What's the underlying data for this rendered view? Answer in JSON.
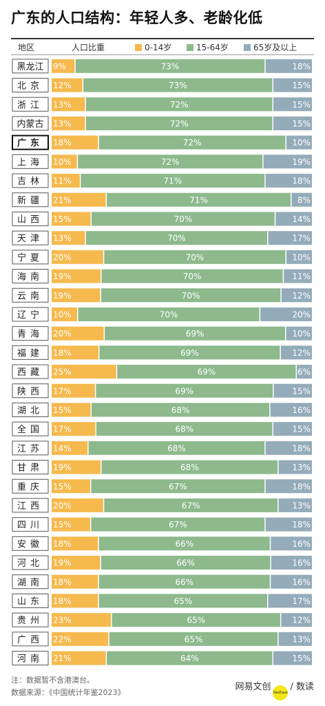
{
  "title": "广东的人口结构：年轻人多、老龄化低",
  "header": {
    "region_label": "地区",
    "ratio_label": "人口比重"
  },
  "colors": {
    "young": "#f5b94e",
    "working": "#8db98c",
    "old": "#94abb9"
  },
  "chart_data": {
    "type": "bar",
    "orientation": "horizontal",
    "stacked": true,
    "unit": "%",
    "highlight": "广东",
    "categories": [
      "黑龙江",
      "北京",
      "浙江",
      "内蒙古",
      "广东",
      "上海",
      "吉林",
      "新疆",
      "山西",
      "天津",
      "宁夏",
      "海南",
      "云南",
      "辽宁",
      "青海",
      "福建",
      "西藏",
      "陕西",
      "湖北",
      "全国",
      "江苏",
      "甘肃",
      "重庆",
      "江西",
      "四川",
      "安徽",
      "河北",
      "湖南",
      "山东",
      "贵州",
      "广西",
      "河南"
    ],
    "series": [
      {
        "name": "0-14岁",
        "values": [
          9,
          12,
          13,
          13,
          18,
          10,
          11,
          21,
          15,
          13,
          20,
          19,
          19,
          10,
          20,
          18,
          25,
          17,
          15,
          17,
          14,
          19,
          15,
          20,
          15,
          18,
          19,
          18,
          18,
          23,
          22,
          21
        ]
      },
      {
        "name": "15-64岁",
        "values": [
          73,
          73,
          72,
          72,
          72,
          72,
          71,
          71,
          70,
          70,
          70,
          70,
          70,
          70,
          69,
          69,
          69,
          69,
          68,
          68,
          68,
          68,
          67,
          67,
          67,
          66,
          66,
          66,
          65,
          65,
          65,
          64
        ]
      },
      {
        "name": "65岁及以上",
        "values": [
          18,
          15,
          15,
          15,
          10,
          19,
          18,
          8,
          14,
          17,
          10,
          11,
          12,
          20,
          10,
          12,
          6,
          15,
          16,
          15,
          18,
          13,
          18,
          13,
          18,
          16,
          16,
          16,
          17,
          12,
          13,
          15
        ]
      }
    ]
  },
  "footer": {
    "note": "注：数据暂不含港澳台。",
    "source": "数据来源：《中国统计年鉴2023》"
  },
  "brand": {
    "left": "网易文创",
    "badge": "NetEase",
    "right": "/ 数读"
  }
}
